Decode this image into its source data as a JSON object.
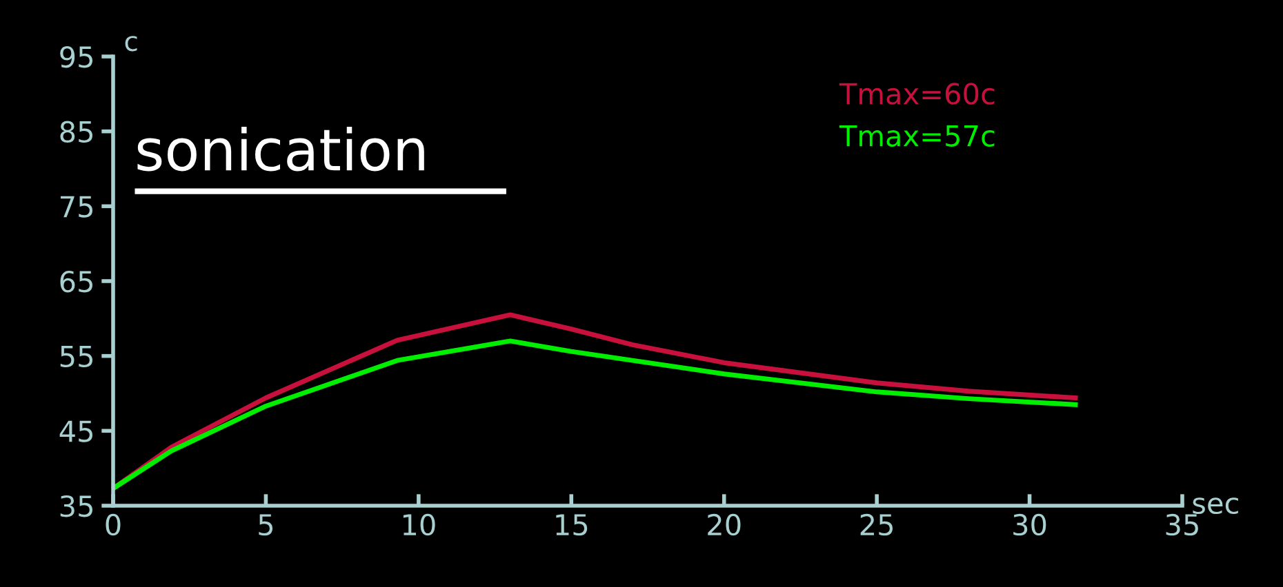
{
  "chart_data": {
    "type": "line",
    "xlabel": "sec",
    "ylabel": "c",
    "annotations": [
      "sonication"
    ],
    "x": [
      0,
      1.9,
      5,
      9.3,
      13,
      15,
      17,
      20,
      25,
      28,
      31.5
    ],
    "series": [
      {
        "name": "Tmax=60c",
        "color": "#c8103c",
        "values": [
          37.3,
          42.8,
          49.4,
          57.1,
          60.5,
          58.6,
          56.5,
          54.1,
          51.4,
          50.3,
          49.4
        ]
      },
      {
        "name": "Tmax=57c",
        "color": "#00ee00",
        "values": [
          37.3,
          42.3,
          48.3,
          54.4,
          57.0,
          55.6,
          54.4,
          52.6,
          50.2,
          49.3,
          48.5
        ]
      }
    ],
    "xlim": [
      0,
      35
    ],
    "xticks": [
      0,
      5,
      10,
      15,
      20,
      25,
      30,
      35
    ],
    "ylim": [
      35,
      95
    ],
    "yticks": [
      35,
      45,
      55,
      65,
      75,
      85,
      95
    ],
    "grid": false,
    "legend": "top right",
    "marker": "none",
    "line_style": "solid"
  }
}
